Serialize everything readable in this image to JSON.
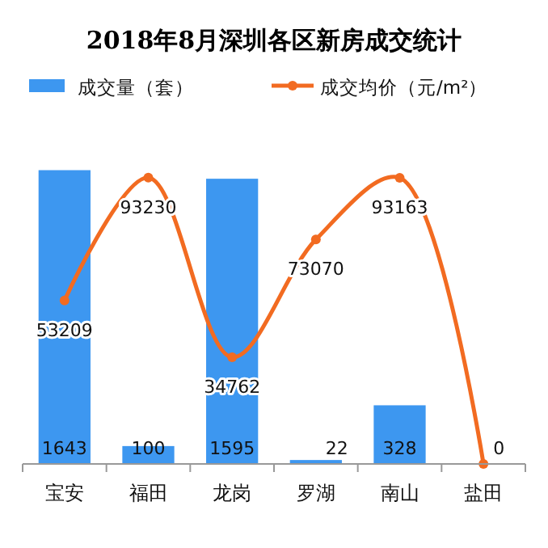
{
  "chart_data": {
    "type": "bar",
    "title": "2018年8月深圳各区新房成交统计",
    "categories": [
      "宝安",
      "福田",
      "龙岗",
      "罗湖",
      "南山",
      "盐田"
    ],
    "series": [
      {
        "name": "成交量（套）",
        "color": "#3d97f0",
        "values": [
          1643,
          100,
          1595,
          22,
          328,
          0
        ]
      },
      {
        "name": "成交均价（元/m²）",
        "type": "line",
        "axis": "y2",
        "color": "#f26b21",
        "marker": "circle",
        "values": [
          53209,
          93230,
          34762,
          73070,
          93163,
          0
        ],
        "value_labels": [
          "53209",
          "93230",
          "34762",
          "73070",
          "93163",
          null
        ]
      }
    ],
    "tick_labels": "x",
    "data_labels": true,
    "legend": "top"
  }
}
